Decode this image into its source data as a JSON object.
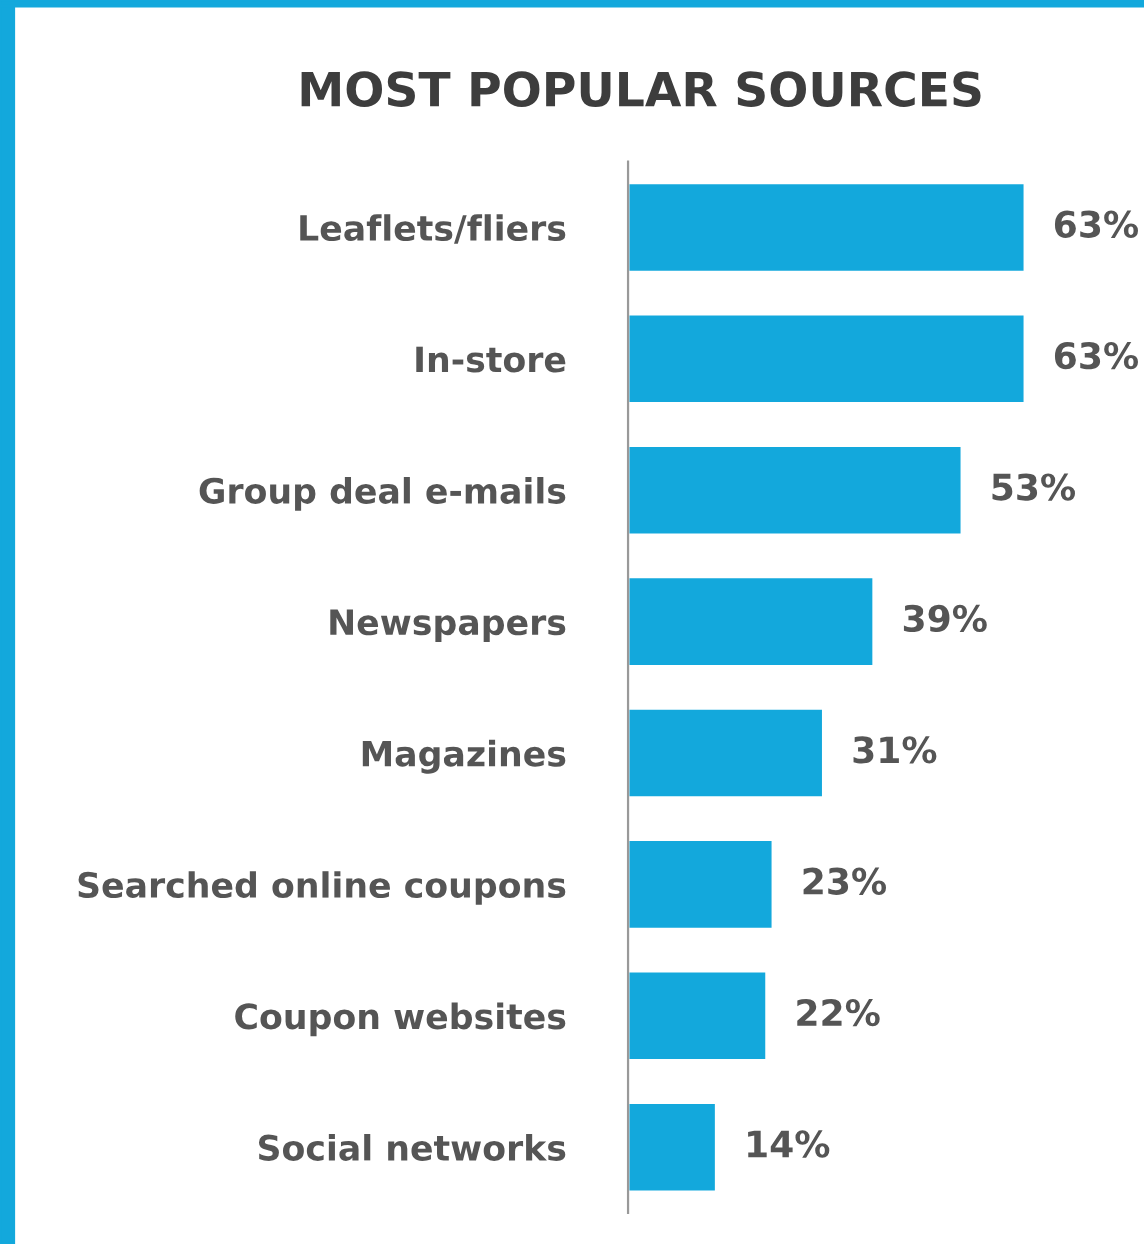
{
  "chart_data": {
    "type": "bar",
    "orientation": "horizontal",
    "title": "MOST POPULAR SOURCES",
    "categories": [
      "Leaflets/fliers",
      "In-store",
      "Group deal e-mails",
      "Newspapers",
      "Magazines",
      "Searched online coupons",
      "Coupon websites",
      "Social networks"
    ],
    "values": [
      63,
      63,
      53,
      39,
      31,
      23,
      22,
      14
    ],
    "value_labels": [
      "63%",
      "63%",
      "53%",
      "39%",
      "31%",
      "23%",
      "22%",
      "14%"
    ],
    "color": "#13a8dc",
    "grid": false,
    "legend": false,
    "tick_labels": "y"
  }
}
